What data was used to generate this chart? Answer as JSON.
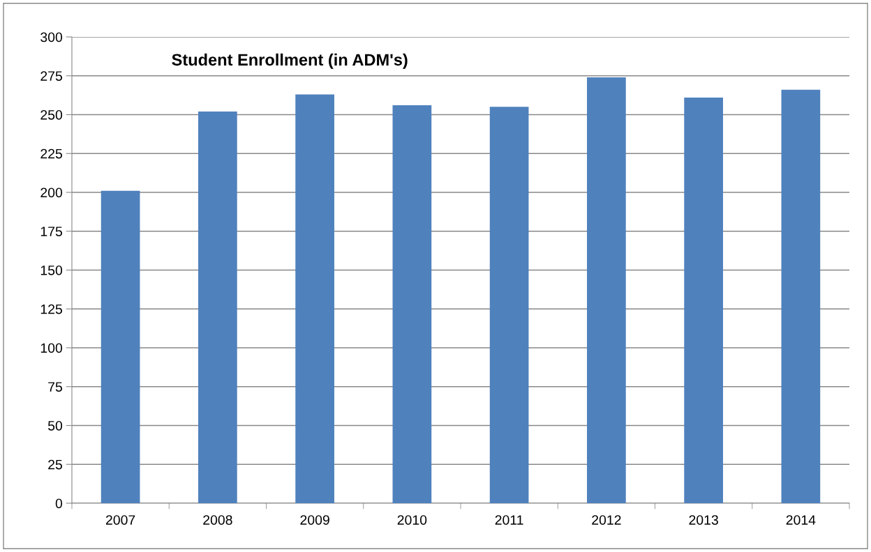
{
  "chart_data": {
    "type": "bar",
    "title": "Student Enrollment (in ADM's)",
    "categories": [
      "2007",
      "2008",
      "2009",
      "2010",
      "2011",
      "2012",
      "2013",
      "2014"
    ],
    "values": [
      201,
      252,
      263,
      256,
      255,
      274,
      261,
      266
    ],
    "color": "#4f81bd",
    "ylim": [
      0,
      300
    ],
    "yticks": [
      0,
      25,
      50,
      75,
      100,
      125,
      150,
      175,
      200,
      225,
      250,
      275,
      300
    ],
    "grid": "y",
    "legend": false
  }
}
